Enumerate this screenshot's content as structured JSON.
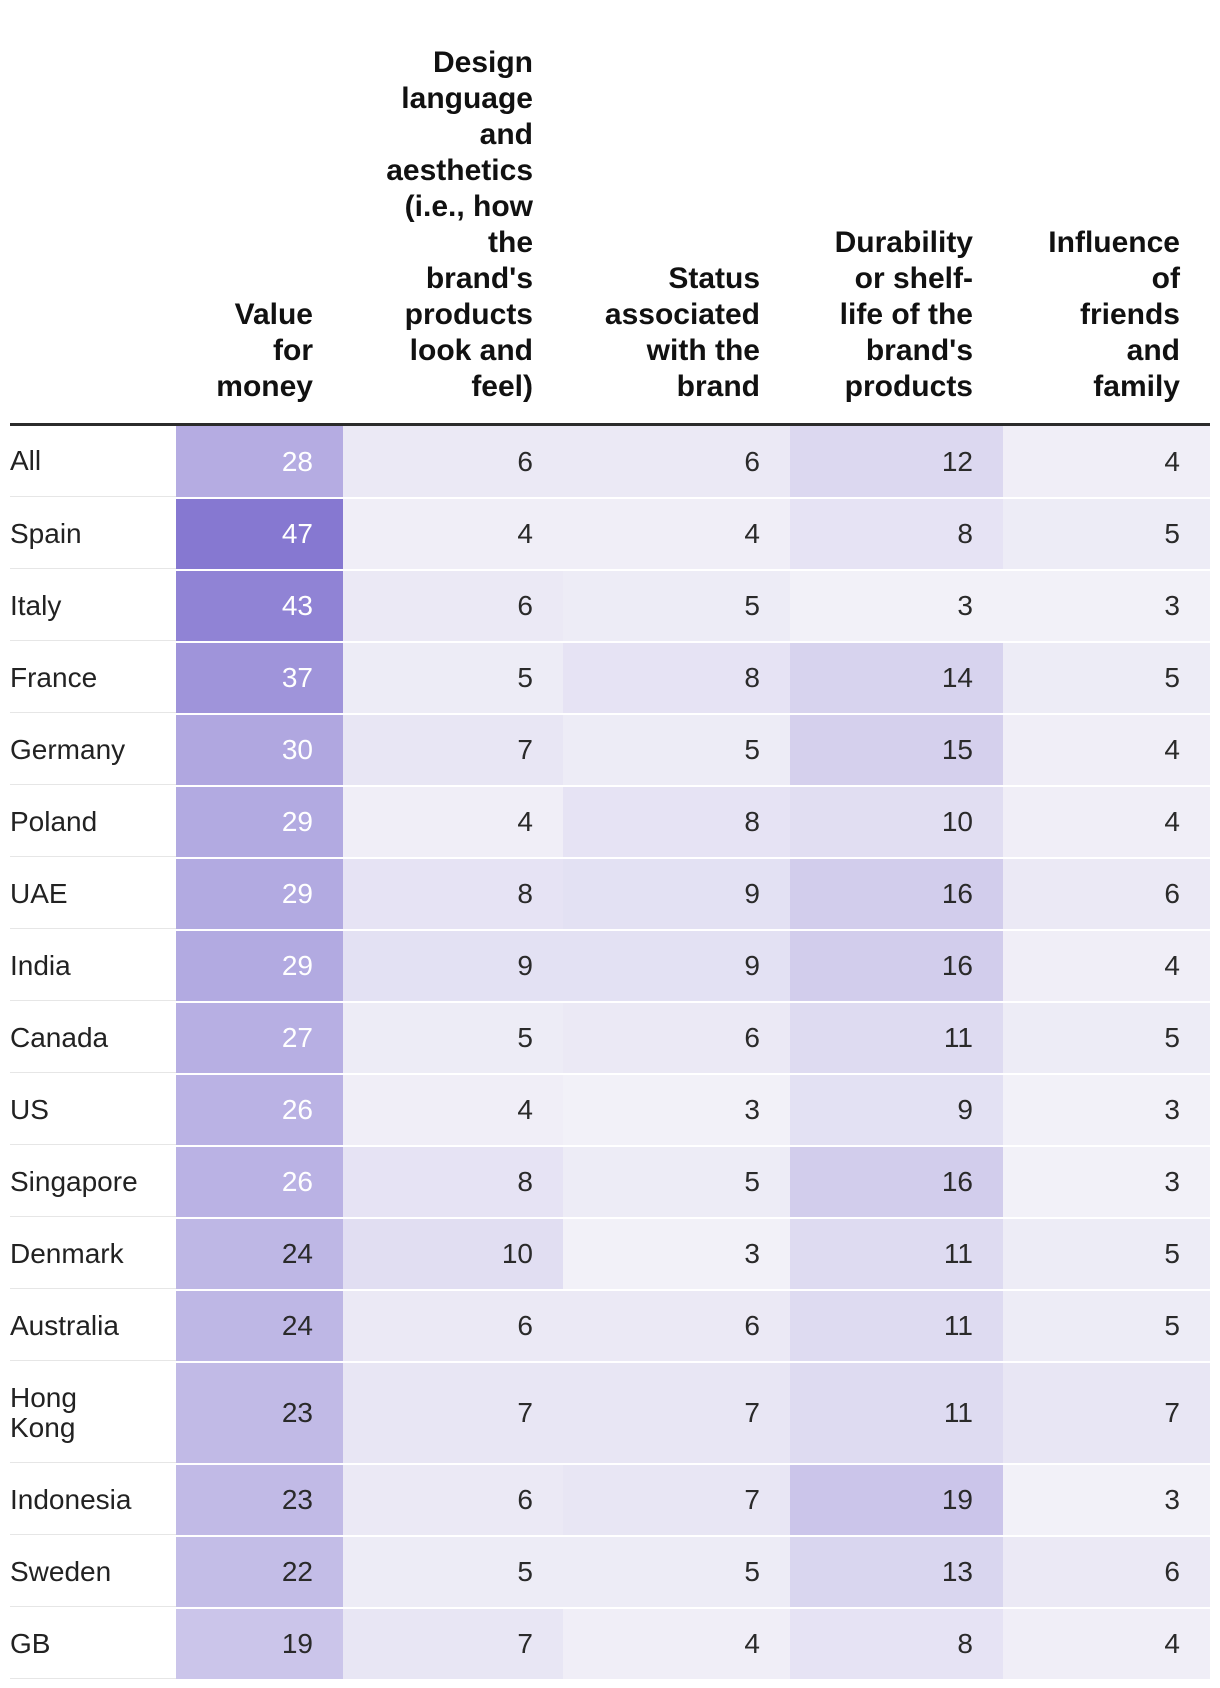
{
  "chart_data": {
    "type": "table",
    "columns": [
      "Value for money",
      "Design language and aesthetics (i.e., how the brand's products look and feel)",
      "Status associated with the brand",
      "Durability or shelf-life of the brand's products",
      "Influence of friends and family"
    ],
    "header_lines": [
      [
        "Value",
        "for",
        "money"
      ],
      [
        "Design",
        "language",
        "and",
        "aesthetics",
        "(i.e., how",
        "the",
        "brand's",
        "products",
        "look and",
        "feel)"
      ],
      [
        "Status",
        "associated",
        "with the",
        "brand"
      ],
      [
        "Durability",
        "or shelf-",
        "life of the",
        "brand's",
        "products"
      ],
      [
        "Influence",
        "of",
        "friends",
        "and",
        "family"
      ]
    ],
    "rows": [
      {
        "label": "All",
        "values": [
          28,
          6,
          6,
          12,
          4
        ]
      },
      {
        "label": "Spain",
        "values": [
          47,
          4,
          4,
          8,
          5
        ]
      },
      {
        "label": "Italy",
        "values": [
          43,
          6,
          5,
          3,
          3
        ]
      },
      {
        "label": "France",
        "values": [
          37,
          5,
          8,
          14,
          5
        ]
      },
      {
        "label": "Germany",
        "values": [
          30,
          7,
          5,
          15,
          4
        ]
      },
      {
        "label": "Poland",
        "values": [
          29,
          4,
          8,
          10,
          4
        ]
      },
      {
        "label": "UAE",
        "values": [
          29,
          8,
          9,
          16,
          6
        ]
      },
      {
        "label": "India",
        "values": [
          29,
          9,
          9,
          16,
          4
        ]
      },
      {
        "label": "Canada",
        "values": [
          27,
          5,
          6,
          11,
          5
        ]
      },
      {
        "label": "US",
        "values": [
          26,
          4,
          3,
          9,
          3
        ]
      },
      {
        "label": "Singapore",
        "values": [
          26,
          8,
          5,
          16,
          3
        ]
      },
      {
        "label": "Denmark",
        "values": [
          24,
          10,
          3,
          11,
          5
        ]
      },
      {
        "label": "Australia",
        "values": [
          24,
          6,
          6,
          11,
          5
        ]
      },
      {
        "label": "Hong Kong",
        "values": [
          23,
          7,
          7,
          11,
          7
        ]
      },
      {
        "label": "Indonesia",
        "values": [
          23,
          6,
          7,
          19,
          3
        ]
      },
      {
        "label": "Sweden",
        "values": [
          22,
          5,
          5,
          13,
          6
        ]
      },
      {
        "label": "GB",
        "values": [
          19,
          7,
          4,
          8,
          4
        ]
      }
    ],
    "color_scale": {
      "low": "#f2f1f8",
      "high": "#8678d1",
      "min": 3,
      "max": 47
    }
  }
}
